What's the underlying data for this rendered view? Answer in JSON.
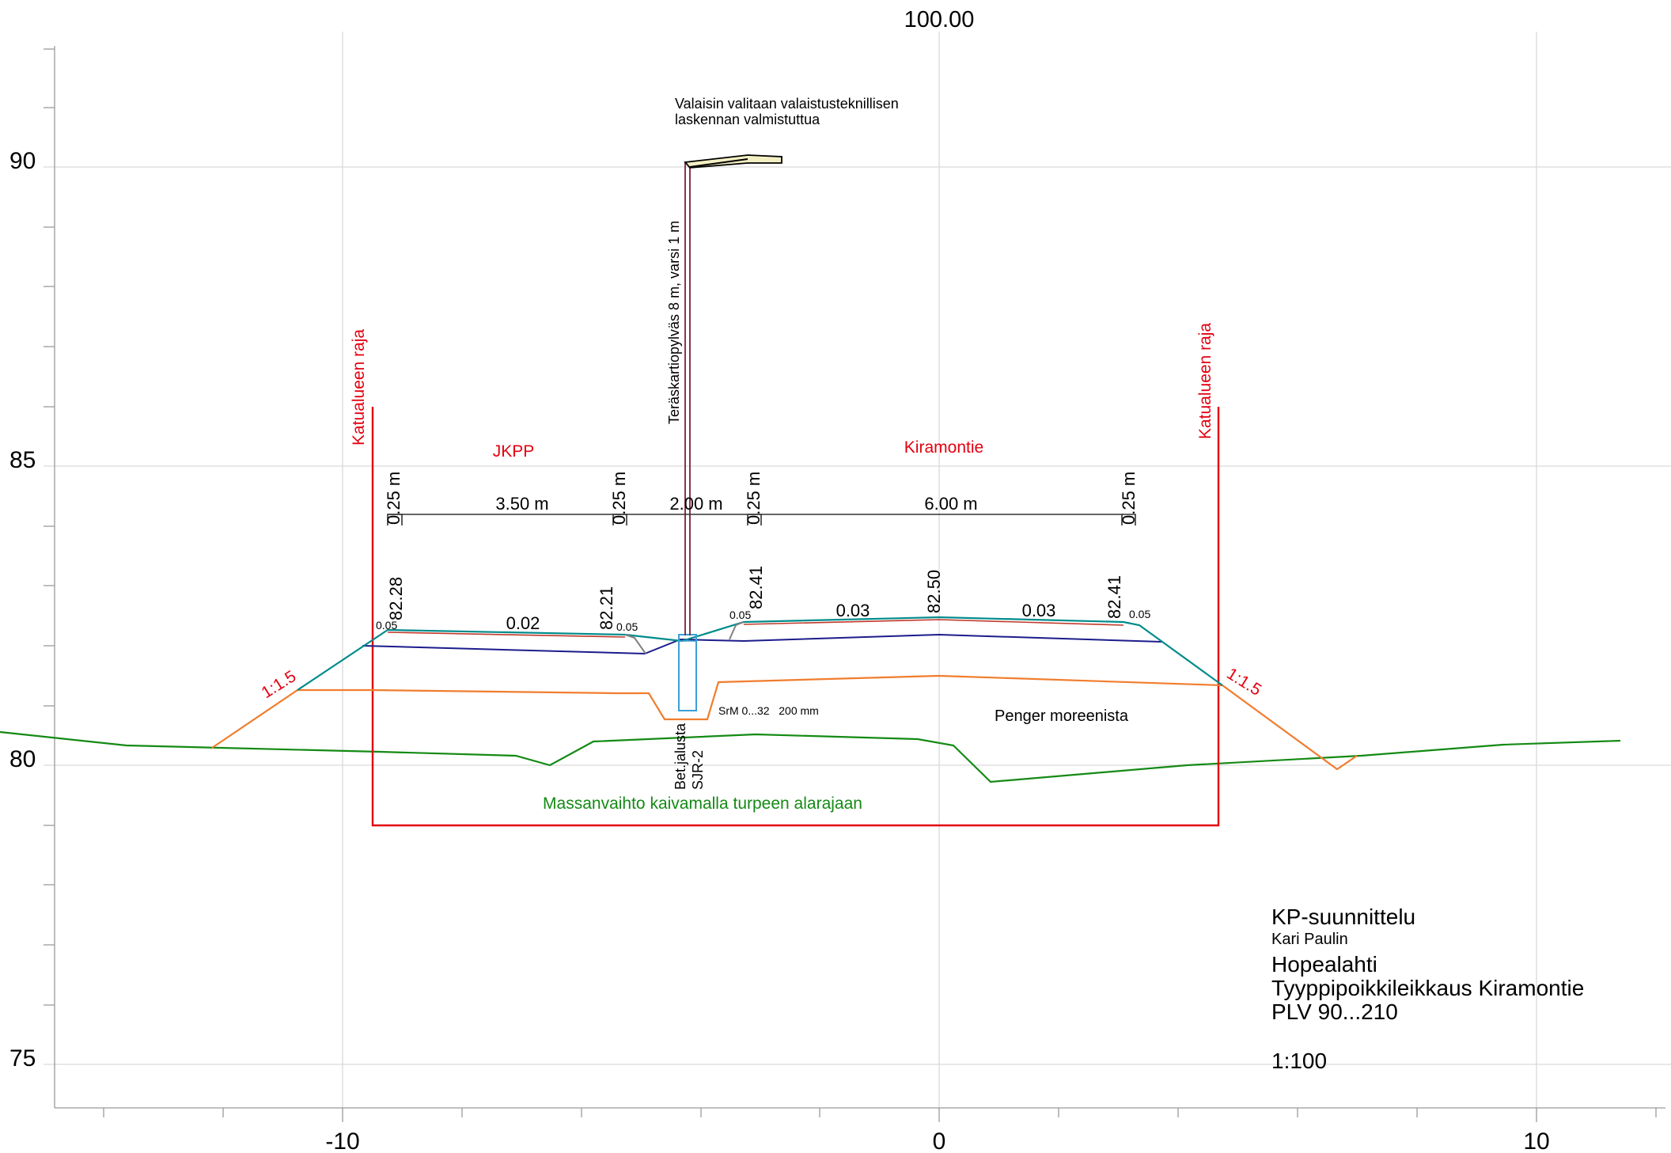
{
  "top_label": "100.00",
  "axis": {
    "x_ticks": [
      "-10",
      "0",
      "10"
    ],
    "y_ticks": [
      "90",
      "85",
      "80",
      "75"
    ]
  },
  "lamp": {
    "note_line1": "Valaisin valitaan valaistusteknillisen",
    "note_line2": "laskennan valmistuttua",
    "pole_label": "Teräskartiopylväs 8 m, varsi 1 m",
    "foundation_line1": "Bet.jalusta",
    "foundation_line2": "SJR-2"
  },
  "boundary": {
    "left_label": "Katualueen raja",
    "right_label": "Katualueen raja"
  },
  "sections": {
    "left_name": "JKPP",
    "right_name": "Kiramontie"
  },
  "dimensions": {
    "w1": "0.25 m",
    "w2": "3.50 m",
    "w3": "0.25 m",
    "w4": "2.00 m",
    "w5": "0.25 m",
    "w6": "6.00 m",
    "w7": "0.25 m"
  },
  "elevations": {
    "e1": "82.28",
    "e2": "82.21",
    "e3": "82.41",
    "e4": "82.50",
    "e5": "82.41"
  },
  "slopes": {
    "s1": "0.02",
    "s2": "0.03",
    "s3": "0.03",
    "edge1": "0.05",
    "edge2": "0.05",
    "edge3": "0.05",
    "edge4": "0.05",
    "side_left": "1:1.5",
    "side_right": "1:1.5"
  },
  "layers": {
    "base_note": "SrM 0...32   200 mm",
    "embankment": "Penger moreenista",
    "mass_exchange": "Massanvaihto kaivamalla turpeen alarajaan"
  },
  "title_block": {
    "company": "KP-suunnittelu",
    "designer": "Kari Paulin",
    "project": "Hopealahti",
    "drawing": "Tyyppipoikkileikkaus Kiramontie",
    "stations": "PLV 90...210",
    "scale": "1:100"
  },
  "colors": {
    "boundary": "#e3000f",
    "ground": "#148a14",
    "embankment": "#f07d2e",
    "surface": "#008b8b",
    "subbase": "#1c1c8c",
    "pavement": "#c0392b",
    "pole": "#7a1f3d"
  }
}
